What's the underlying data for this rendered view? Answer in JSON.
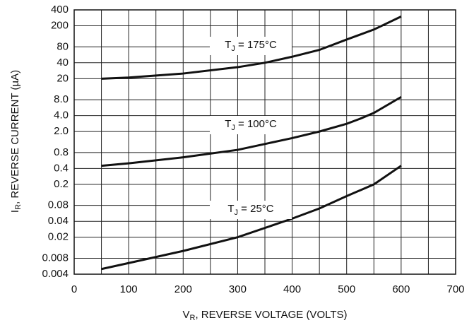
{
  "chart_data": {
    "type": "line",
    "x_label": {
      "main": "V",
      "sub": "R",
      "rest": ", REVERSE VOLTAGE (VOLTS)"
    },
    "y_label": {
      "main": "I",
      "sub": "R",
      "rest": ", REVERSE CURRENT (µA)"
    },
    "log_y": true,
    "grid": true,
    "xlim": [
      0,
      700
    ],
    "xticks": [
      0,
      100,
      200,
      300,
      400,
      500,
      600,
      700
    ],
    "xminor": [
      50,
      150,
      250,
      350,
      450,
      550,
      650
    ],
    "ylim": [
      0.004,
      400
    ],
    "yticks": [
      0.004,
      0.008,
      0.02,
      0.04,
      0.08,
      0.2,
      0.4,
      0.8,
      {
        "value": 2,
        "label": "2.0"
      },
      {
        "value": 4,
        "label": "4.0"
      },
      {
        "value": 8,
        "label": "8.0"
      },
      20,
      40,
      80,
      200,
      400
    ],
    "series": [
      {
        "name": {
          "main": "T",
          "sub": "J",
          "rest": " = 175°C"
        },
        "color": "#111111",
        "x": [
          50,
          100,
          200,
          300,
          350,
          400,
          450,
          500,
          550,
          600
        ],
        "values": [
          20,
          21,
          25,
          33,
          40,
          52,
          70,
          110,
          170,
          300
        ]
      },
      {
        "name": {
          "main": "T",
          "sub": "J",
          "rest": " = 100°C"
        },
        "color": "#111111",
        "x": [
          50,
          100,
          200,
          300,
          400,
          450,
          500,
          525,
          550,
          600
        ],
        "values": [
          0.45,
          0.5,
          0.65,
          0.9,
          1.5,
          2.0,
          2.8,
          3.5,
          4.5,
          9
        ]
      },
      {
        "name": {
          "main": "T",
          "sub": "J",
          "rest": " = 25°C"
        },
        "color": "#111111",
        "x": [
          50,
          100,
          200,
          300,
          400,
          450,
          500,
          550,
          600
        ],
        "values": [
          0.005,
          0.0065,
          0.011,
          0.02,
          0.045,
          0.07,
          0.12,
          0.2,
          0.45
        ]
      }
    ]
  }
}
